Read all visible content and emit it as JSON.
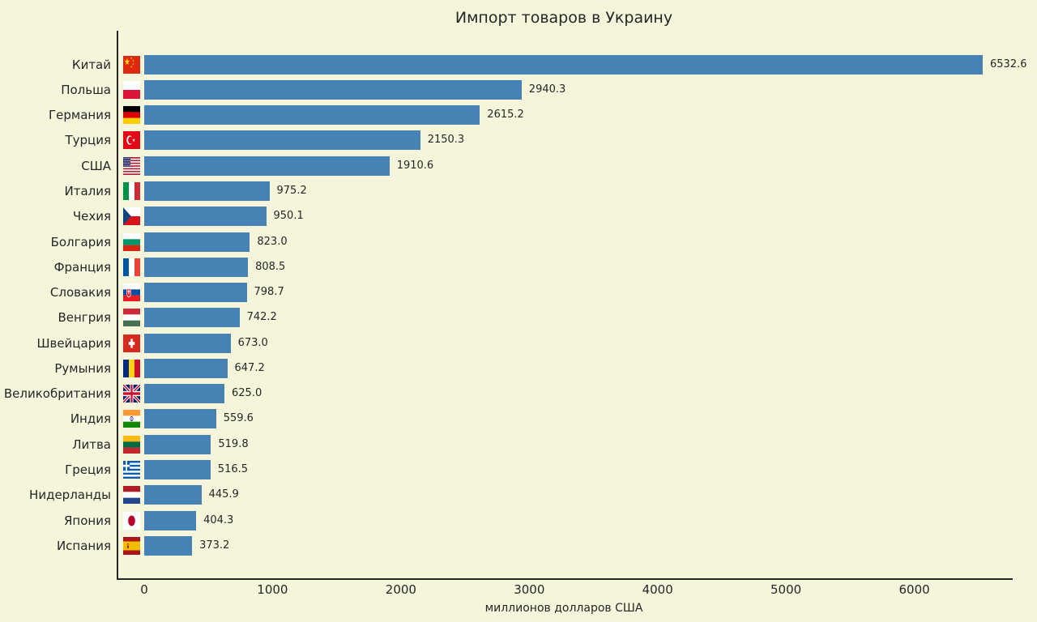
{
  "chart_data": {
    "type": "bar",
    "orientation": "horizontal",
    "title": "Импорт товаров в Украину",
    "xlabel": "миллионов долларов США",
    "xlim": [
      0,
      6770
    ],
    "xticks": [
      0,
      1000,
      2000,
      3000,
      4000,
      5000,
      6000
    ],
    "grid": false,
    "legend": false,
    "bar_color": "#4682B4",
    "background_color": "#F5F5DC",
    "categories": [
      "Китай",
      "Польша",
      "Германия",
      "Турция",
      "США",
      "Италия",
      "Чехия",
      "Болгария",
      "Франция",
      "Словакия",
      "Венгрия",
      "Швейцария",
      "Румыния",
      "Великобритания",
      "Индия",
      "Литва",
      "Греция",
      "Нидерланды",
      "Япония",
      "Испания"
    ],
    "values": [
      6532.6,
      2940.3,
      2615.2,
      2150.3,
      1910.6,
      975.2,
      950.1,
      823.0,
      808.5,
      798.7,
      742.2,
      673.0,
      647.2,
      625.0,
      559.6,
      519.8,
      516.5,
      445.9,
      404.3,
      373.2
    ]
  },
  "rows": [
    {
      "label": "Китай",
      "value": "6532.6",
      "flag": "cn"
    },
    {
      "label": "Польша",
      "value": "2940.3",
      "flag": "pl"
    },
    {
      "label": "Германия",
      "value": "2615.2",
      "flag": "de"
    },
    {
      "label": "Турция",
      "value": "2150.3",
      "flag": "tr"
    },
    {
      "label": "США",
      "value": "1910.6",
      "flag": "us"
    },
    {
      "label": "Италия",
      "value": "975.2",
      "flag": "it"
    },
    {
      "label": "Чехия",
      "value": "950.1",
      "flag": "cz"
    },
    {
      "label": "Болгария",
      "value": "823.0",
      "flag": "bg"
    },
    {
      "label": "Франция",
      "value": "808.5",
      "flag": "fr"
    },
    {
      "label": "Словакия",
      "value": "798.7",
      "flag": "sk"
    },
    {
      "label": "Венгрия",
      "value": "742.2",
      "flag": "hu"
    },
    {
      "label": "Швейцария",
      "value": "673.0",
      "flag": "ch"
    },
    {
      "label": "Румыния",
      "value": "647.2",
      "flag": "ro"
    },
    {
      "label": "Великобритания",
      "value": "625.0",
      "flag": "gb"
    },
    {
      "label": "Индия",
      "value": "559.6",
      "flag": "in"
    },
    {
      "label": "Литва",
      "value": "519.8",
      "flag": "lt"
    },
    {
      "label": "Греция",
      "value": "516.5",
      "flag": "gr"
    },
    {
      "label": "Нидерланды",
      "value": "445.9",
      "flag": "nl"
    },
    {
      "label": "Япония",
      "value": "404.3",
      "flag": "jp"
    },
    {
      "label": "Испания",
      "value": "373.2",
      "flag": "es"
    }
  ],
  "colors": {
    "background": "#F5F5DC",
    "bar": "#4682B4",
    "axis": "#262626",
    "text": "#262626"
  }
}
